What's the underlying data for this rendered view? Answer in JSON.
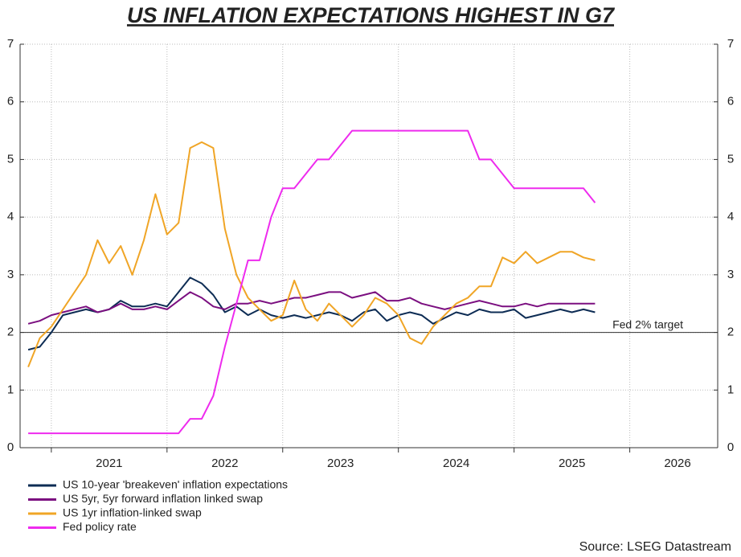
{
  "chart_data": {
    "type": "line",
    "title": "US INFLATION EXPECTATIONS HIGHEST IN G7",
    "source": "Source: LSEG Datastream",
    "x": [
      2020.8,
      2020.9,
      2021.0,
      2021.1,
      2021.2,
      2021.3,
      2021.4,
      2021.5,
      2021.6,
      2021.7,
      2021.8,
      2021.9,
      2022.0,
      2022.1,
      2022.2,
      2022.3,
      2022.4,
      2022.5,
      2022.6,
      2022.7,
      2022.8,
      2022.9,
      2023.0,
      2023.1,
      2023.2,
      2023.3,
      2023.4,
      2023.5,
      2023.6,
      2023.7,
      2023.8,
      2023.9,
      2024.0,
      2024.1,
      2024.2,
      2024.3,
      2024.4,
      2024.5,
      2024.6,
      2024.7,
      2024.8,
      2024.9,
      2025.0,
      2025.1,
      2025.2,
      2025.3,
      2025.4,
      2025.5,
      2025.6,
      2025.7
    ],
    "xlim": [
      2020.73,
      2026.76
    ],
    "xticks": [
      2021,
      2022,
      2023,
      2024,
      2025,
      2026
    ],
    "ylim": [
      0,
      7
    ],
    "yticks": [
      0,
      1,
      2,
      3,
      4,
      5,
      6,
      7
    ],
    "y2lim": [
      0,
      7
    ],
    "y2ticks": [
      0,
      1,
      2,
      3,
      4,
      5,
      6,
      7
    ],
    "grid": true,
    "legend": "bottom-left",
    "reference_line": {
      "value": 2,
      "label": "Fed 2% target"
    },
    "series": [
      {
        "name": "US 10-year 'breakeven' inflation expectations",
        "color": "#0d2c54",
        "values": [
          1.7,
          1.75,
          2.0,
          2.3,
          2.35,
          2.4,
          2.35,
          2.4,
          2.55,
          2.45,
          2.45,
          2.5,
          2.45,
          2.7,
          2.95,
          2.85,
          2.65,
          2.35,
          2.45,
          2.3,
          2.4,
          2.3,
          2.25,
          2.3,
          2.25,
          2.3,
          2.35,
          2.3,
          2.2,
          2.35,
          2.4,
          2.2,
          2.3,
          2.35,
          2.3,
          2.15,
          2.25,
          2.35,
          2.3,
          2.4,
          2.35,
          2.35,
          2.4,
          2.25,
          2.3,
          2.35,
          2.4,
          2.35,
          2.4,
          2.35
        ]
      },
      {
        "name": "US 5yr, 5yr forward inflation linked swap",
        "color": "#7b0f80",
        "values": [
          2.15,
          2.2,
          2.3,
          2.35,
          2.4,
          2.45,
          2.35,
          2.4,
          2.5,
          2.4,
          2.4,
          2.45,
          2.4,
          2.55,
          2.7,
          2.6,
          2.45,
          2.4,
          2.5,
          2.5,
          2.55,
          2.5,
          2.55,
          2.6,
          2.6,
          2.65,
          2.7,
          2.7,
          2.6,
          2.65,
          2.7,
          2.55,
          2.55,
          2.6,
          2.5,
          2.45,
          2.4,
          2.45,
          2.5,
          2.55,
          2.5,
          2.45,
          2.45,
          2.5,
          2.45,
          2.5,
          2.5,
          2.5,
          2.5,
          2.5
        ]
      },
      {
        "name": "US 1yr inflation-linked swap",
        "color": "#f0a526",
        "values": [
          1.4,
          1.9,
          2.1,
          2.4,
          2.7,
          3.0,
          3.6,
          3.2,
          3.5,
          3.0,
          3.6,
          4.4,
          3.7,
          3.9,
          5.2,
          5.3,
          5.2,
          3.8,
          3.0,
          2.6,
          2.4,
          2.2,
          2.3,
          2.9,
          2.4,
          2.2,
          2.5,
          2.3,
          2.1,
          2.3,
          2.6,
          2.5,
          2.3,
          1.9,
          1.8,
          2.1,
          2.3,
          2.5,
          2.6,
          2.8,
          2.8,
          3.3,
          3.2,
          3.4,
          3.2,
          3.3,
          3.4,
          3.4,
          3.3,
          3.25
        ]
      },
      {
        "name": "Fed policy rate",
        "color": "#ee2bee",
        "values": [
          0.25,
          0.25,
          0.25,
          0.25,
          0.25,
          0.25,
          0.25,
          0.25,
          0.25,
          0.25,
          0.25,
          0.25,
          0.25,
          0.25,
          0.5,
          0.5,
          0.9,
          1.75,
          2.5,
          3.25,
          3.25,
          4.0,
          4.5,
          4.5,
          4.75,
          5.0,
          5.0,
          5.25,
          5.5,
          5.5,
          5.5,
          5.5,
          5.5,
          5.5,
          5.5,
          5.5,
          5.5,
          5.5,
          5.5,
          5.0,
          5.0,
          4.75,
          4.5,
          4.5,
          4.5,
          4.5,
          4.5,
          4.5,
          4.5,
          4.25
        ]
      }
    ]
  }
}
